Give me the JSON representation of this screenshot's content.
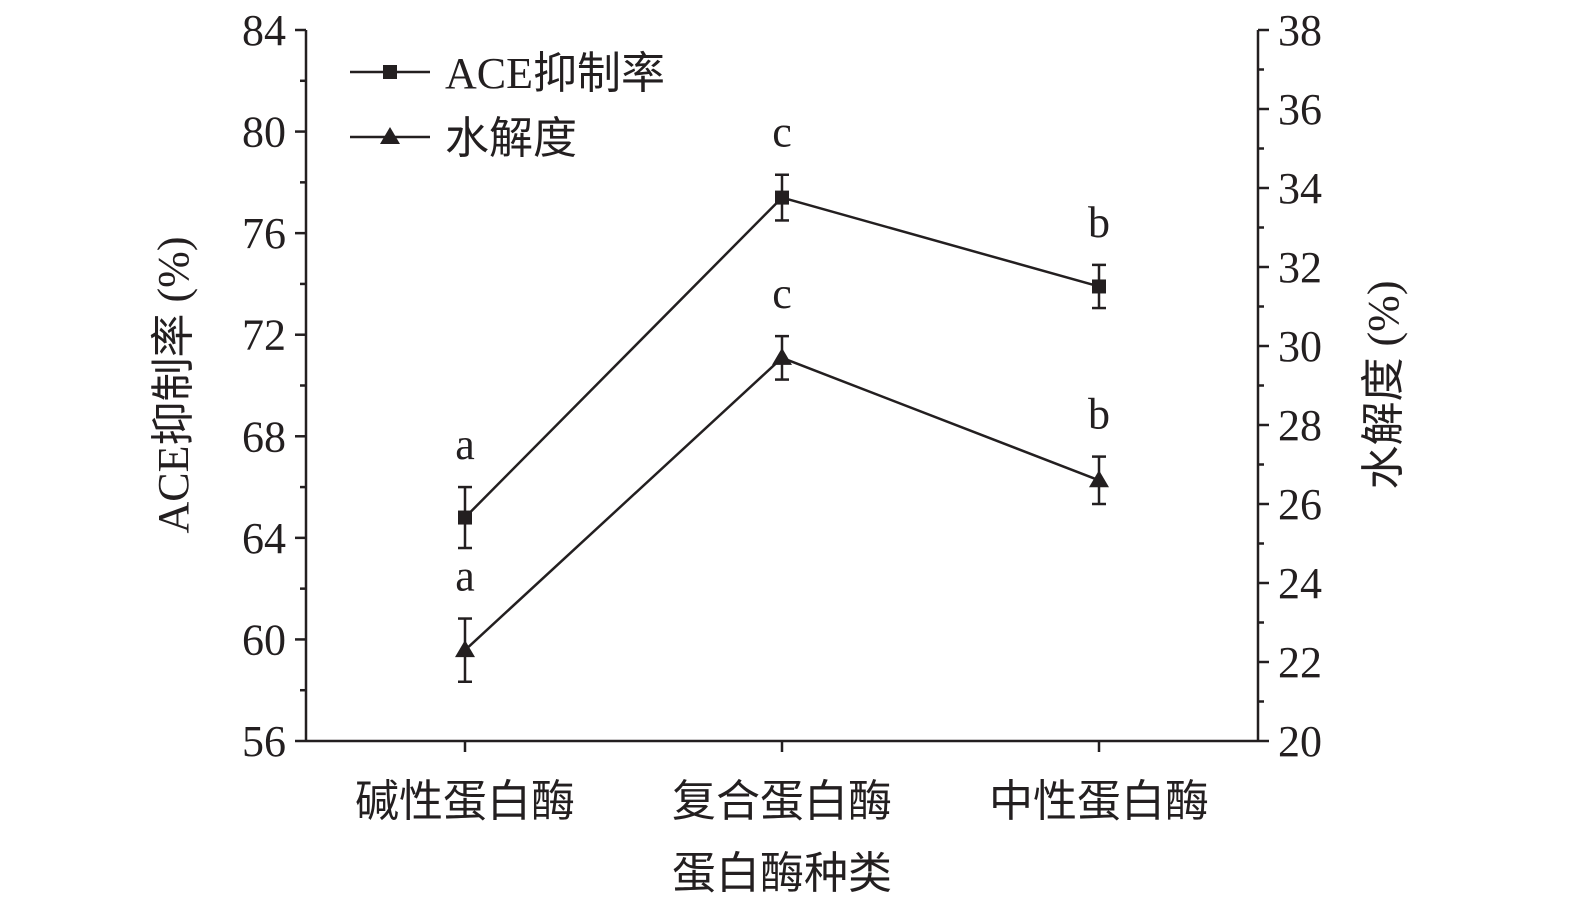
{
  "chart_data": {
    "type": "line",
    "categories": [
      "碱性蛋白酶",
      "复合蛋白酶",
      "中性蛋白酶"
    ],
    "xlabel": "蛋白酶种类",
    "ylabel": "ACE抑制率 (%)",
    "y2label": "水解度 (%)",
    "ylim": [
      56,
      84
    ],
    "y2lim": [
      20,
      38
    ],
    "yticks": [
      56,
      60,
      64,
      68,
      72,
      76,
      80,
      84
    ],
    "y2ticks": [
      20,
      22,
      24,
      26,
      28,
      30,
      32,
      34,
      36,
      38
    ],
    "grid": false,
    "legend": "top-left",
    "series": [
      {
        "name": "ACE抑制率",
        "axis": "left",
        "marker": "square",
        "values": [
          64.8,
          77.4,
          73.9
        ],
        "errors": [
          1.2,
          0.9,
          0.85
        ],
        "letters": [
          "a",
          "c",
          "b"
        ]
      },
      {
        "name": "水解度",
        "axis": "right",
        "marker": "triangle",
        "values": [
          22.3,
          29.7,
          26.6
        ],
        "errors": [
          0.8,
          0.55,
          0.6
        ],
        "letters": [
          "a",
          "c",
          "b"
        ]
      }
    ],
    "color": "#231f20"
  }
}
